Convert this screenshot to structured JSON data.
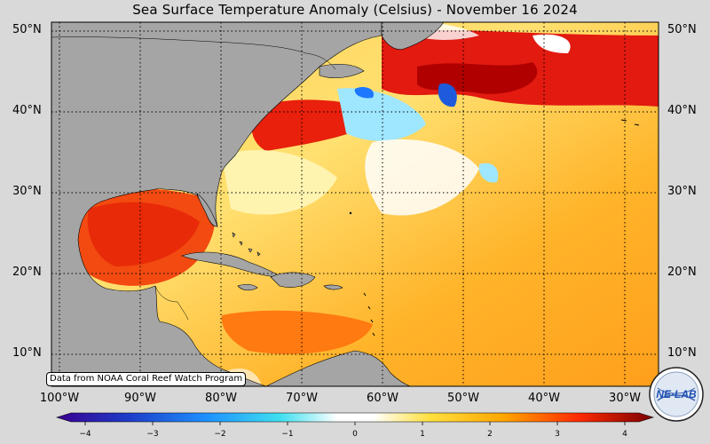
{
  "title": "Sea Surface Temperature Anomaly (Celsius) - November 16 2024",
  "lat_labels": [
    "50°N",
    "40°N",
    "30°N",
    "20°N",
    "10°N"
  ],
  "lon_labels": [
    "100°W",
    "90°W",
    "80°W",
    "70°W",
    "60°W",
    "50°W",
    "40°W",
    "30°W"
  ],
  "credit": "Data from NOAA Coral Reef Watch Program",
  "colorbar": {
    "min": -4,
    "max": 4,
    "ticks": [
      "−4",
      "−3",
      "−2",
      "−1",
      "0",
      "1",
      "2",
      "3",
      "4"
    ]
  },
  "logo_text": "NE·LAB",
  "colors": {
    "land": "#a5a5a5",
    "background": "#d9d9d9",
    "warm_high": "#cc0000",
    "cool_low": "#1e3cc8"
  }
}
